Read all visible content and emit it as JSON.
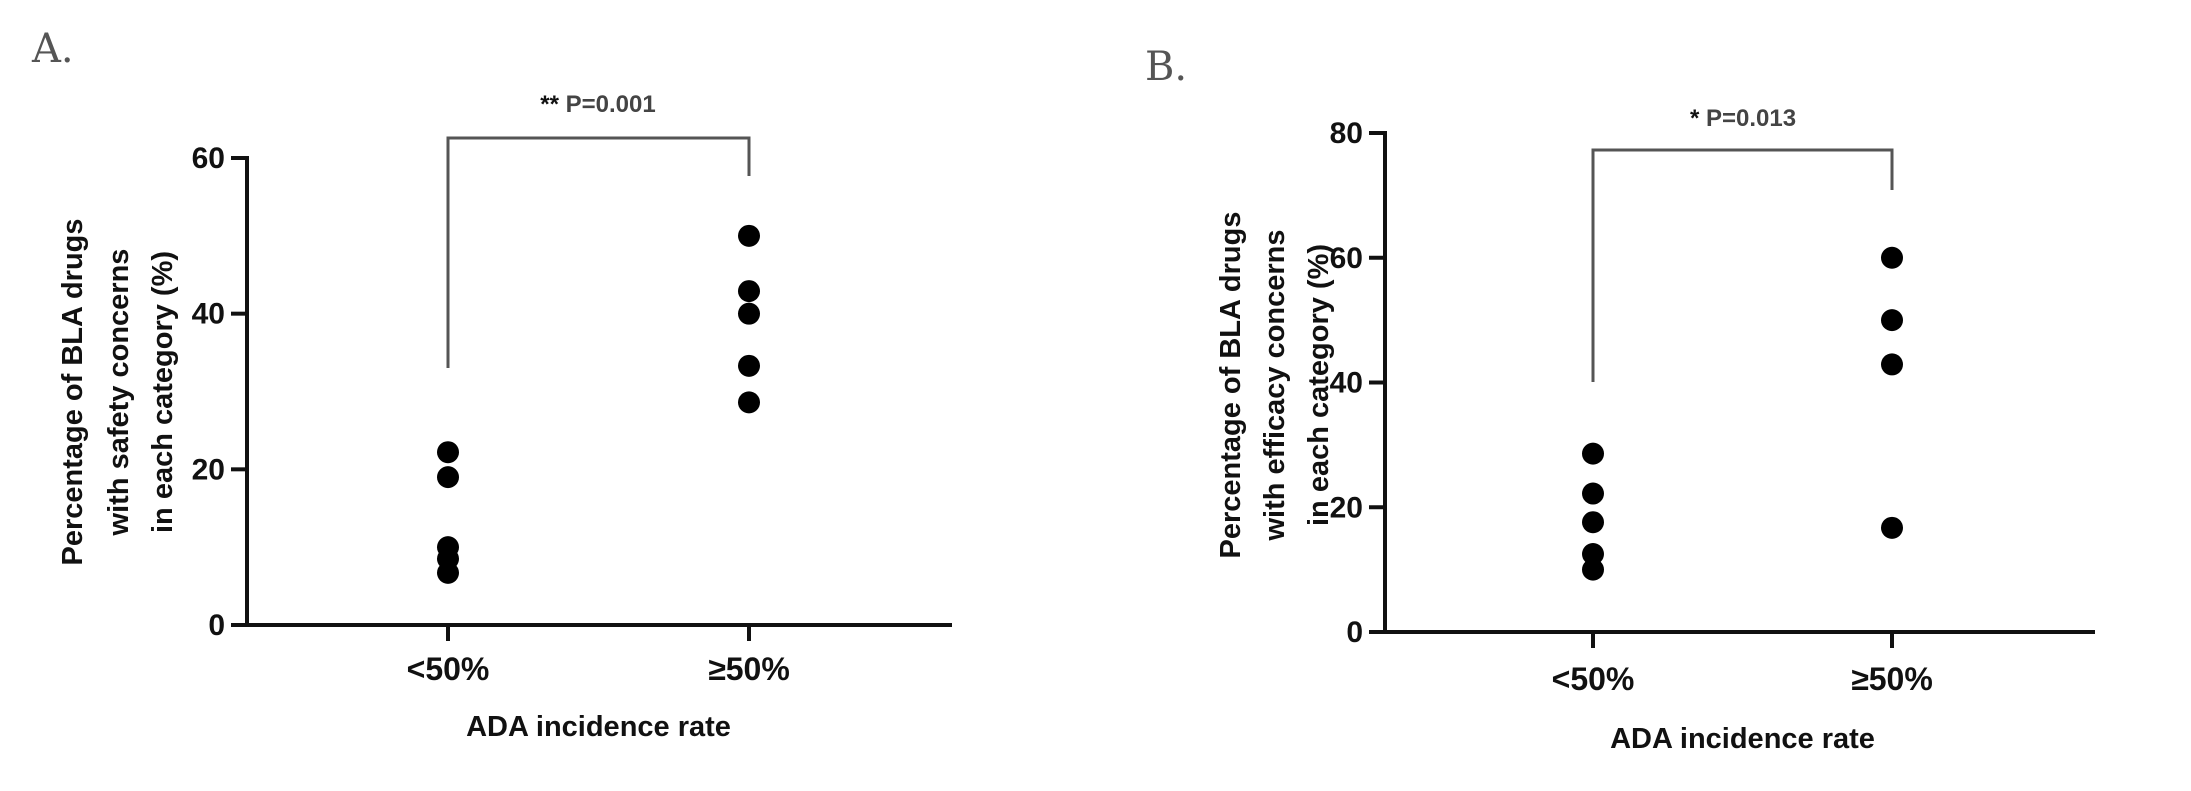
{
  "chart_data": [
    {
      "panel": "A.",
      "type": "scatter",
      "categories": [
        "<50%",
        "≥50%"
      ],
      "series": [
        {
          "category": "<50%",
          "values": [
            22.2,
            19.0,
            10.0,
            8.5,
            6.7
          ]
        },
        {
          "category": "≥50%",
          "values": [
            50.0,
            42.9,
            40.0,
            33.3,
            28.6
          ]
        }
      ],
      "xlabel": "ADA incidence rate",
      "ylabel": [
        "Percentage of BLA drugs",
        "with safety concerns",
        "in each category (%)"
      ],
      "ylim": [
        0,
        60
      ],
      "yticks": [
        "0",
        "20",
        "40",
        "60"
      ],
      "bracket": {
        "stars": "**",
        "label": "P=0.001"
      },
      "grid": false,
      "color": "#000000"
    },
    {
      "panel": "B.",
      "type": "scatter",
      "categories": [
        "<50%",
        "≥50%"
      ],
      "series": [
        {
          "category": "<50%",
          "values": [
            28.6,
            22.2,
            17.6,
            12.5,
            10.0
          ]
        },
        {
          "category": "≥50%",
          "values": [
            60.0,
            50.0,
            42.9,
            16.7
          ]
        }
      ],
      "xlabel": "ADA incidence rate",
      "ylabel": [
        "Percentage of BLA drugs",
        "with efficacy concerns",
        "in each category (%)"
      ],
      "ylim": [
        0,
        80
      ],
      "yticks": [
        "0",
        "20",
        "40",
        "60",
        "80"
      ],
      "bracket": {
        "stars": "*",
        "label": "P=0.013"
      },
      "grid": false,
      "color": "#000000"
    }
  ]
}
